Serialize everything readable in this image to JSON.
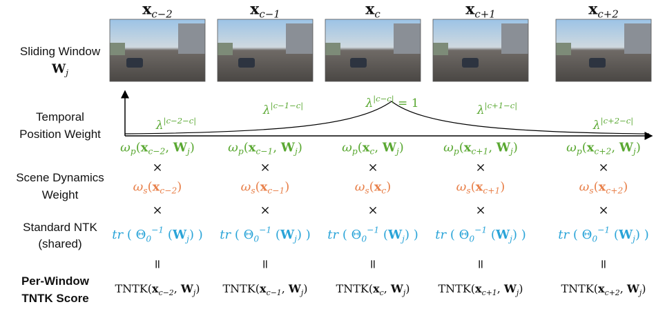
{
  "row_labels": {
    "sliding_window": {
      "text": "Sliding Window",
      "symbol": [
        {
          "bold": "W"
        },
        {
          "sub": "j"
        }
      ]
    },
    "temporal": [
      "Temporal",
      "Position Weight"
    ],
    "scene": [
      "Scene Dynamics",
      "Weight"
    ],
    "ntk": [
      "Standard NTK",
      "(shared)"
    ],
    "tntk": [
      "Per-Window",
      "TNTK Score"
    ]
  },
  "operators": {
    "times": "×",
    "equals": "="
  },
  "columns": [
    {
      "frame_label": [
        {
          "bold": "x"
        },
        {
          "sub": "c−2"
        }
      ],
      "lambda": [
        {
          "text": "λ"
        },
        {
          "sup": "|c−2−c|"
        }
      ],
      "omega_p": [
        {
          "text": "ω"
        },
        {
          "sub": "p"
        },
        {
          "roman": "("
        },
        {
          "bold": "x"
        },
        {
          "sub": "c−2"
        },
        {
          "roman": ", "
        },
        {
          "bold": "W"
        },
        {
          "sub": "j"
        },
        {
          "roman": ")"
        }
      ],
      "omega_s": [
        {
          "text": "ω"
        },
        {
          "sub": "s"
        },
        {
          "roman": "("
        },
        {
          "bold": "x"
        },
        {
          "sub": "c−2"
        },
        {
          "roman": ")"
        }
      ],
      "ntk": [
        {
          "text": "tr "
        },
        {
          "roman": "( Θ"
        },
        {
          "sub": "0"
        },
        {
          "sup": "−1"
        },
        {
          "roman": " ("
        },
        {
          "bold": "W"
        },
        {
          "sub": "j"
        },
        {
          "roman": ") )"
        }
      ],
      "tntk": [
        {
          "roman": "TNTK("
        },
        {
          "bold": "x"
        },
        {
          "sub": "c−2"
        },
        {
          "roman": ", "
        },
        {
          "bold": "W"
        },
        {
          "sub": "j"
        },
        {
          "roman": ")"
        }
      ]
    },
    {
      "frame_label": [
        {
          "bold": "x"
        },
        {
          "sub": "c−1"
        }
      ],
      "lambda": [
        {
          "text": "λ"
        },
        {
          "sup": "|c−1−c|"
        }
      ],
      "omega_p": [
        {
          "text": "ω"
        },
        {
          "sub": "p"
        },
        {
          "roman": "("
        },
        {
          "bold": "x"
        },
        {
          "sub": "c−1"
        },
        {
          "roman": ", "
        },
        {
          "bold": "W"
        },
        {
          "sub": "j"
        },
        {
          "roman": ")"
        }
      ],
      "omega_s": [
        {
          "text": "ω"
        },
        {
          "sub": "s"
        },
        {
          "roman": "("
        },
        {
          "bold": "x"
        },
        {
          "sub": "c−1"
        },
        {
          "roman": ")"
        }
      ],
      "ntk": [
        {
          "text": "tr "
        },
        {
          "roman": "( Θ"
        },
        {
          "sub": "0"
        },
        {
          "sup": "−1"
        },
        {
          "roman": " ("
        },
        {
          "bold": "W"
        },
        {
          "sub": "j"
        },
        {
          "roman": ") )"
        }
      ],
      "tntk": [
        {
          "roman": "TNTK("
        },
        {
          "bold": "x"
        },
        {
          "sub": "c−1"
        },
        {
          "roman": ", "
        },
        {
          "bold": "W"
        },
        {
          "sub": "j"
        },
        {
          "roman": ")"
        }
      ]
    },
    {
      "frame_label": [
        {
          "bold": "x"
        },
        {
          "sub": "c"
        }
      ],
      "lambda": [
        {
          "text": "λ"
        },
        {
          "sup": "|c−c|"
        },
        {
          "roman": " = 1"
        }
      ],
      "omega_p": [
        {
          "text": "ω"
        },
        {
          "sub": "p"
        },
        {
          "roman": "("
        },
        {
          "bold": "x"
        },
        {
          "sub": "c"
        },
        {
          "roman": ", "
        },
        {
          "bold": "W"
        },
        {
          "sub": "j"
        },
        {
          "roman": ")"
        }
      ],
      "omega_s": [
        {
          "text": "ω"
        },
        {
          "sub": "s"
        },
        {
          "roman": "("
        },
        {
          "bold": "x"
        },
        {
          "sub": "c"
        },
        {
          "roman": ")"
        }
      ],
      "ntk": [
        {
          "text": "tr "
        },
        {
          "roman": "( Θ"
        },
        {
          "sub": "0"
        },
        {
          "sup": "−1"
        },
        {
          "roman": " ("
        },
        {
          "bold": "W"
        },
        {
          "sub": "j"
        },
        {
          "roman": ") )"
        }
      ],
      "tntk": [
        {
          "roman": "TNTK("
        },
        {
          "bold": "x"
        },
        {
          "sub": "c"
        },
        {
          "roman": ", "
        },
        {
          "bold": "W"
        },
        {
          "sub": "j"
        },
        {
          "roman": ")"
        }
      ]
    },
    {
      "frame_label": [
        {
          "bold": "x"
        },
        {
          "sub": "c+1"
        }
      ],
      "lambda": [
        {
          "text": "λ"
        },
        {
          "sup": "|c+1−c|"
        }
      ],
      "omega_p": [
        {
          "text": "ω"
        },
        {
          "sub": "p"
        },
        {
          "roman": "("
        },
        {
          "bold": "x"
        },
        {
          "sub": "c+1"
        },
        {
          "roman": ", "
        },
        {
          "bold": "W"
        },
        {
          "sub": "j"
        },
        {
          "roman": ")"
        }
      ],
      "omega_s": [
        {
          "text": "ω"
        },
        {
          "sub": "s"
        },
        {
          "roman": "("
        },
        {
          "bold": "x"
        },
        {
          "sub": "c+1"
        },
        {
          "roman": ")"
        }
      ],
      "ntk": [
        {
          "text": "tr "
        },
        {
          "roman": "( Θ"
        },
        {
          "sub": "0"
        },
        {
          "sup": "−1"
        },
        {
          "roman": " ("
        },
        {
          "bold": "W"
        },
        {
          "sub": "j"
        },
        {
          "roman": ") )"
        }
      ],
      "tntk": [
        {
          "roman": "TNTK("
        },
        {
          "bold": "x"
        },
        {
          "sub": "c+1"
        },
        {
          "roman": ", "
        },
        {
          "bold": "W"
        },
        {
          "sub": "j"
        },
        {
          "roman": ")"
        }
      ]
    },
    {
      "frame_label": [
        {
          "bold": "x"
        },
        {
          "sub": "c+2"
        }
      ],
      "lambda": [
        {
          "text": "λ"
        },
        {
          "sup": "|c+2−c|"
        }
      ],
      "omega_p": [
        {
          "text": "ω"
        },
        {
          "sub": "p"
        },
        {
          "roman": "("
        },
        {
          "bold": "x"
        },
        {
          "sub": "c+2"
        },
        {
          "roman": ", "
        },
        {
          "bold": "W"
        },
        {
          "sub": "j"
        },
        {
          "roman": ")"
        }
      ],
      "omega_s": [
        {
          "text": "ω"
        },
        {
          "sub": "s"
        },
        {
          "roman": "("
        },
        {
          "bold": "x"
        },
        {
          "sub": "c+2"
        },
        {
          "roman": ")"
        }
      ],
      "ntk": [
        {
          "text": "tr "
        },
        {
          "roman": "( Θ"
        },
        {
          "sub": "0"
        },
        {
          "sup": "−1"
        },
        {
          "roman": " ("
        },
        {
          "bold": "W"
        },
        {
          "sub": "j"
        },
        {
          "roman": ") )"
        }
      ],
      "tntk": [
        {
          "roman": "TNTK("
        },
        {
          "bold": "x"
        },
        {
          "sub": "c+2"
        },
        {
          "roman": ", "
        },
        {
          "bold": "W"
        },
        {
          "sub": "j"
        },
        {
          "roman": ")"
        }
      ]
    }
  ]
}
